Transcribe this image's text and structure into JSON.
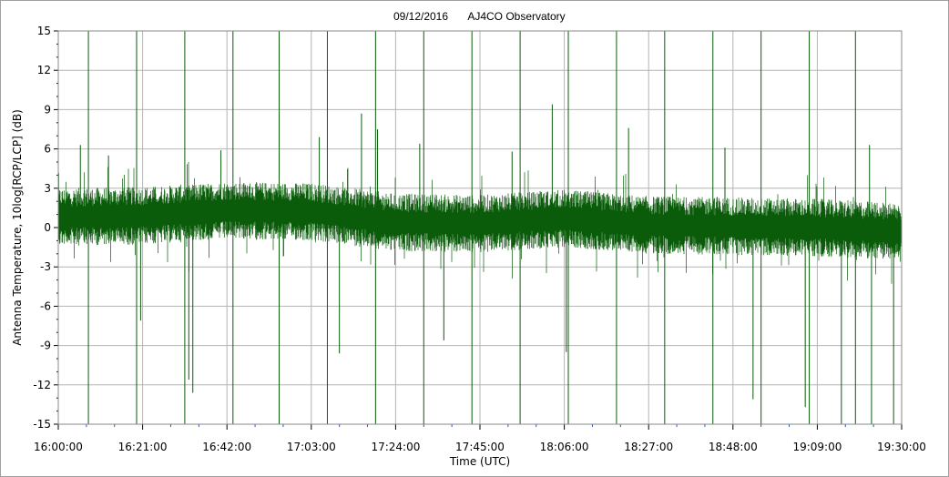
{
  "colors": {
    "series": "#0a5c0a",
    "grid": "#b4b4b4",
    "axis": "#000000",
    "plot_background": "#ffffff",
    "window_background": "#f0f0f0"
  },
  "chart_data": {
    "type": "line",
    "title_date": "09/12/2016",
    "title_site": "AJ4CO Observatory",
    "xlabel": "Time (UTC)",
    "ylabel": "Antenna Temperature, 10log[RCP/LCP] (dB)",
    "x_range": [
      "16:00:00",
      "19:30:00"
    ],
    "ylim": [
      -15,
      15
    ],
    "grid": true,
    "legend": "none",
    "x_ticks": [
      "16:00:00",
      "16:21:00",
      "16:42:00",
      "17:03:00",
      "17:24:00",
      "17:45:00",
      "18:06:00",
      "18:27:00",
      "18:48:00",
      "19:09:00",
      "19:30:00"
    ],
    "y_ticks": [
      "15",
      "12",
      "9",
      "6",
      "3",
      "0",
      "-3",
      "-6",
      "-9",
      "-12",
      "-15"
    ],
    "series": [
      {
        "baseline_profile": {
          "times": [
            "16:00:00",
            "16:21:00",
            "16:42:00",
            "17:03:00",
            "17:24:00",
            "17:45:00",
            "18:06:00",
            "18:27:00",
            "18:48:00",
            "19:09:00",
            "19:30:00"
          ],
          "values": [
            0.8,
            0.9,
            1.3,
            1.2,
            0.4,
            0.3,
            0.7,
            0.2,
            0.1,
            0.0,
            -0.3
          ]
        },
        "spikes_up": [
          {
            "time": "16:07:30",
            "value": 15
          },
          {
            "time": "16:19:30",
            "value": 15
          },
          {
            "time": "16:31:30",
            "value": 15
          },
          {
            "time": "16:43:30",
            "value": 15
          },
          {
            "time": "16:55:00",
            "value": 15
          },
          {
            "time": "17:07:00",
            "value": 15
          },
          {
            "time": "17:19:00",
            "value": 15
          },
          {
            "time": "17:31:00",
            "value": 15
          },
          {
            "time": "17:43:00",
            "value": 15
          },
          {
            "time": "17:55:00",
            "value": 15
          },
          {
            "time": "18:07:00",
            "value": 15
          },
          {
            "time": "18:19:00",
            "value": 15
          },
          {
            "time": "18:31:00",
            "value": 15
          },
          {
            "time": "18:43:00",
            "value": 15
          },
          {
            "time": "18:55:00",
            "value": 15
          },
          {
            "time": "19:07:00",
            "value": 15
          },
          {
            "time": "19:18:30",
            "value": 15
          },
          {
            "time": "16:05:30",
            "value": 6.3
          },
          {
            "time": "16:12:30",
            "value": 5.5
          },
          {
            "time": "16:40:30",
            "value": 5.9
          },
          {
            "time": "17:05:00",
            "value": 6.9
          },
          {
            "time": "17:15:30",
            "value": 8.7
          },
          {
            "time": "17:19:30",
            "value": 7.5
          },
          {
            "time": "17:30:00",
            "value": 6.4
          },
          {
            "time": "17:53:00",
            "value": 5.8
          },
          {
            "time": "18:03:00",
            "value": 9.4
          },
          {
            "time": "18:22:00",
            "value": 7.6
          },
          {
            "time": "18:46:00",
            "value": 6.1
          },
          {
            "time": "19:22:00",
            "value": 6.3
          }
        ],
        "spikes_down": [
          {
            "time": "16:07:30",
            "value": -15
          },
          {
            "time": "16:19:30",
            "value": -15
          },
          {
            "time": "16:31:30",
            "value": -15
          },
          {
            "time": "16:43:30",
            "value": -15
          },
          {
            "time": "16:55:00",
            "value": -15
          },
          {
            "time": "17:07:00",
            "value": -15
          },
          {
            "time": "17:19:00",
            "value": -15
          },
          {
            "time": "17:31:00",
            "value": -15
          },
          {
            "time": "17:43:00",
            "value": -15
          },
          {
            "time": "17:55:00",
            "value": -15
          },
          {
            "time": "18:07:00",
            "value": -15
          },
          {
            "time": "18:19:00",
            "value": -15
          },
          {
            "time": "18:31:00",
            "value": -15
          },
          {
            "time": "18:43:00",
            "value": -15
          },
          {
            "time": "18:55:00",
            "value": -15
          },
          {
            "time": "19:07:00",
            "value": -15
          },
          {
            "time": "19:18:30",
            "value": -15
          },
          {
            "time": "16:20:30",
            "value": -7.1
          },
          {
            "time": "16:32:30",
            "value": -11.6
          },
          {
            "time": "16:33:30",
            "value": -12.6
          },
          {
            "time": "17:10:00",
            "value": -9.6
          },
          {
            "time": "17:36:00",
            "value": -8.6
          },
          {
            "time": "18:06:30",
            "value": -9.5
          },
          {
            "time": "18:53:00",
            "value": -13.1
          },
          {
            "time": "19:06:00",
            "value": -13.7
          },
          {
            "time": "19:15:00",
            "value": -15
          },
          {
            "time": "19:22:30",
            "value": -15
          },
          {
            "time": "19:28:00",
            "value": -15
          }
        ]
      }
    ]
  }
}
